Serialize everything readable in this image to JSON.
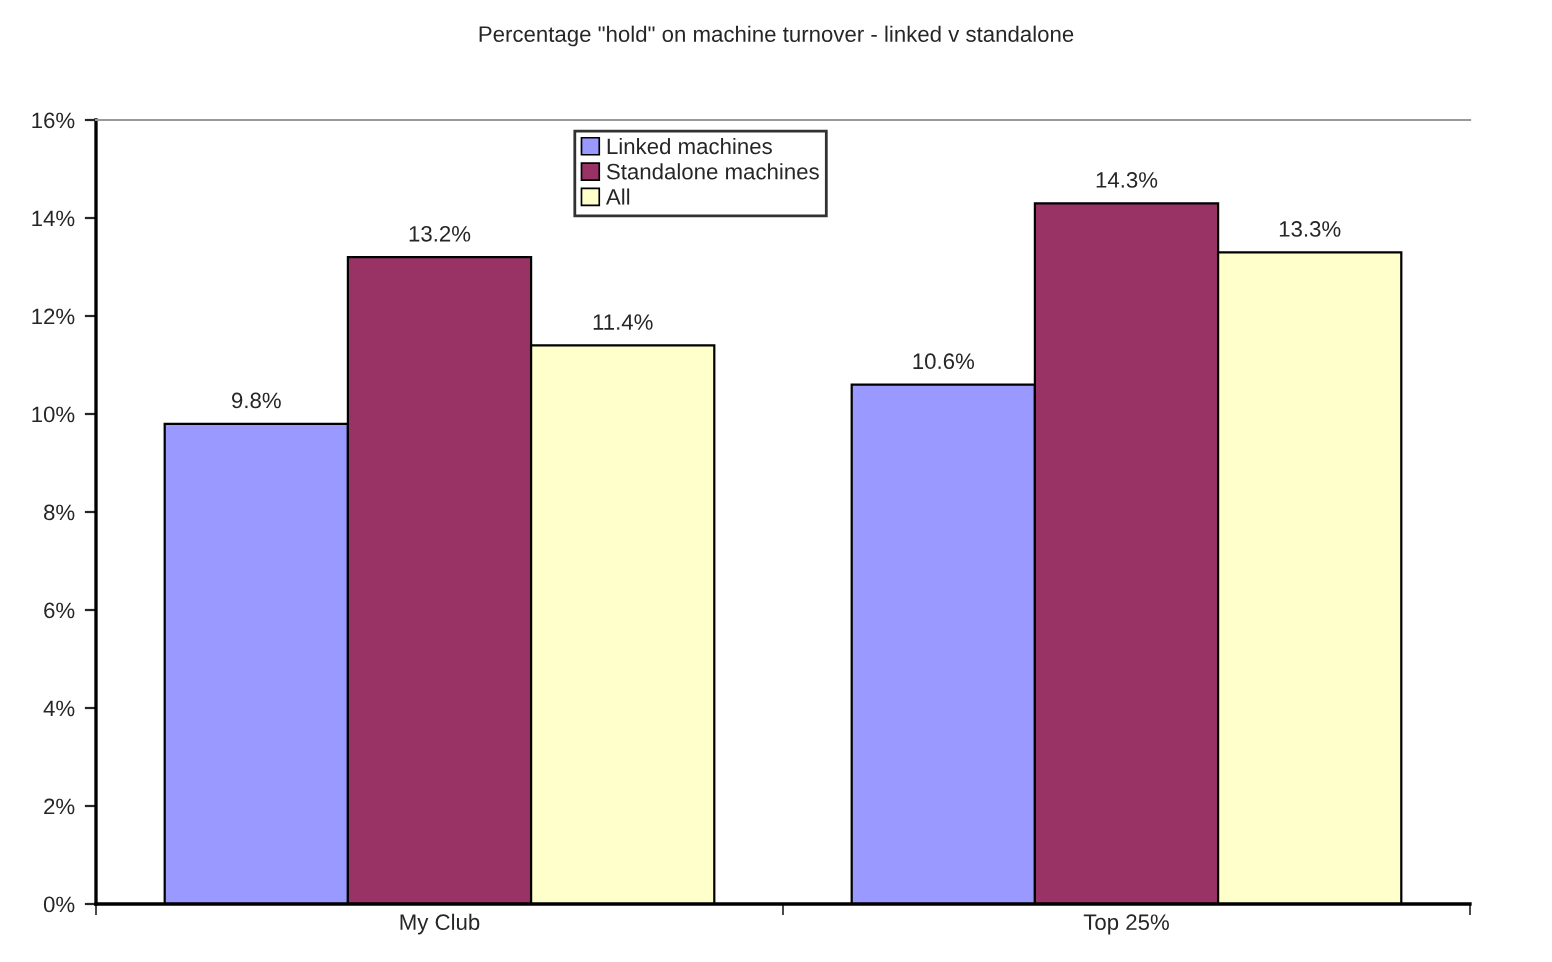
{
  "chart_data": {
    "type": "bar",
    "title": "Percentage \"hold\" on machine turnover - linked v standalone",
    "categories": [
      "My Club",
      "Top 25%"
    ],
    "series": [
      {
        "name": "Linked machines",
        "color": "#9999ff",
        "values": [
          9.8,
          10.6
        ],
        "value_labels": [
          "9.8%",
          "10.6%"
        ]
      },
      {
        "name": "Standalone machines",
        "color": "#993366",
        "values": [
          13.2,
          14.3
        ],
        "value_labels": [
          "13.2%",
          "14.3%"
        ]
      },
      {
        "name": "All",
        "color": "#ffffcc",
        "values": [
          11.4,
          13.3
        ],
        "value_labels": [
          "11.4%",
          "13.3%"
        ]
      }
    ],
    "ylim": [
      0,
      16
    ],
    "yticks": [
      {
        "value": 0,
        "label": "0%"
      },
      {
        "value": 2,
        "label": "2%"
      },
      {
        "value": 4,
        "label": "4%"
      },
      {
        "value": 6,
        "label": "6%"
      },
      {
        "value": 8,
        "label": "8%"
      },
      {
        "value": 10,
        "label": "10%"
      },
      {
        "value": 12,
        "label": "12%"
      },
      {
        "value": 14,
        "label": "14%"
      },
      {
        "value": 16,
        "label": "16%"
      }
    ],
    "grid": false,
    "legend": "top"
  }
}
